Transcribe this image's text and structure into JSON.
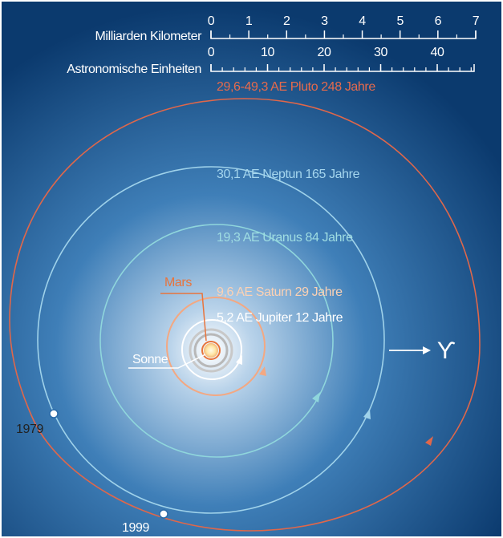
{
  "scale": {
    "km_label": "Milliarden Kilometer",
    "km_ticks": [
      0,
      1,
      2,
      3,
      4,
      5,
      6,
      7
    ],
    "au_label": "Astronomische Einheiten",
    "au_ticks": [
      0,
      10,
      20,
      30,
      40
    ]
  },
  "orbits": [
    {
      "label": "29,6-49,3 AE Pluto 248 Jahre"
    },
    {
      "label": "30,1 AE Neptun 165 Jahre"
    },
    {
      "label": "19,3 AE Uranus 84 Jahre"
    },
    {
      "label": "9,6 AE Saturn 29 Jahre"
    },
    {
      "label": "5,2 AE Jupiter 12 Jahre"
    }
  ],
  "labels": {
    "mars": "Mars",
    "sun": "Sonne",
    "year_1979": "1979",
    "year_1999": "1999",
    "vernal_point": "ϒ"
  }
}
